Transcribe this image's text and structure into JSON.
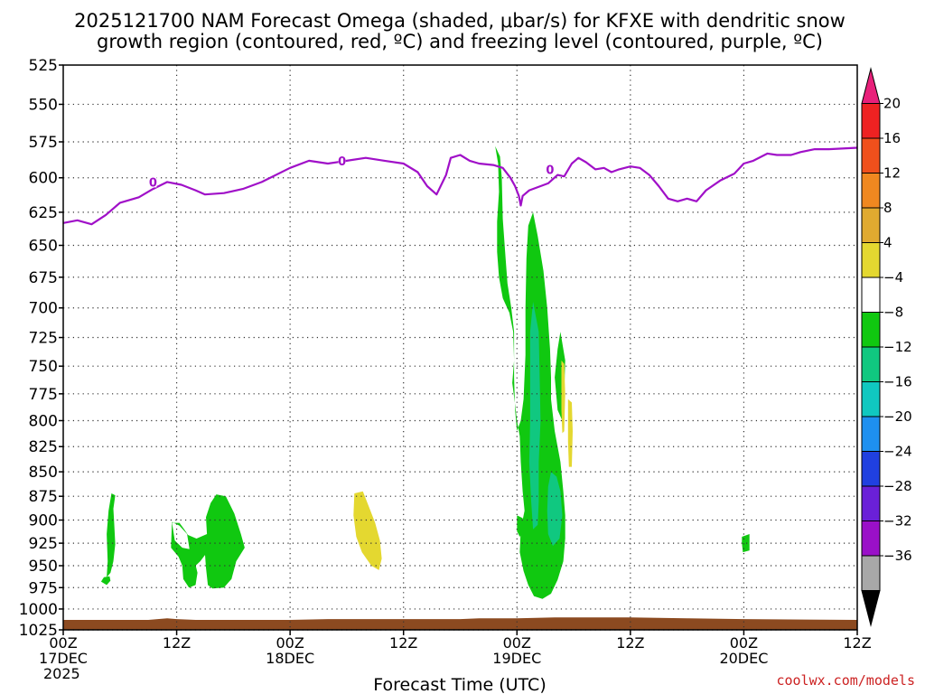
{
  "chart_data": {
    "type": "heatmap",
    "title": {
      "line1": "2025121700 NAM Forecast Omega (shaded, μbar/s) for KFXE with dendritic snow",
      "line2": "growth region (contoured, red, ºC) and freezing level (contoured, purple, ºC)"
    },
    "xlabel": "Forecast Time (UTC)",
    "credit": "coolwx.com/models",
    "x_unit": "hours since 2025-12-17 00Z",
    "xlim": [
      0,
      84
    ],
    "x_ticks": [
      {
        "t": 0,
        "l1": "00Z",
        "l2": "17DEC",
        "l3": "2025"
      },
      {
        "t": 12,
        "l1": "12Z",
        "l2": "",
        "l3": ""
      },
      {
        "t": 24,
        "l1": "00Z",
        "l2": "18DEC",
        "l3": ""
      },
      {
        "t": 36,
        "l1": "12Z",
        "l2": "",
        "l3": ""
      },
      {
        "t": 48,
        "l1": "00Z",
        "l2": "19DEC",
        "l3": ""
      },
      {
        "t": 60,
        "l1": "12Z",
        "l2": "",
        "l3": ""
      },
      {
        "t": 72,
        "l1": "00Z",
        "l2": "20DEC",
        "l3": ""
      },
      {
        "t": 84,
        "l1": "12Z",
        "l2": "",
        "l3": ""
      }
    ],
    "y_ticks": [
      525,
      550,
      575,
      600,
      625,
      650,
      675,
      700,
      725,
      750,
      775,
      800,
      825,
      850,
      875,
      900,
      925,
      950,
      975,
      1000,
      1025
    ],
    "ylim": [
      525,
      1025
    ],
    "y_scale": "log-pressure (hPa), inverted",
    "grid": true,
    "colorbar": {
      "labels": [
        20,
        16,
        12,
        8,
        4,
        -4,
        -8,
        -12,
        -16,
        -20,
        -24,
        -28,
        -32,
        -36
      ],
      "bins": [
        {
          "color": "#e8207a",
          "kind": "tri-top"
        },
        {
          "color": "#ee2222"
        },
        {
          "color": "#f0501c"
        },
        {
          "color": "#f08820"
        },
        {
          "color": "#e0aa30"
        },
        {
          "color": "#e4d830"
        },
        {
          "color": "#ffffff"
        },
        {
          "color": "#10c810"
        },
        {
          "color": "#10c880"
        },
        {
          "color": "#10c8c0"
        },
        {
          "color": "#1e90f0"
        },
        {
          "color": "#2040e0"
        },
        {
          "color": "#6a20d8"
        },
        {
          "color": "#9a10c8"
        },
        {
          "color": "#a8a8a8"
        },
        {
          "color": "#000000",
          "kind": "tri-bottom"
        }
      ]
    },
    "freezing_level": {
      "color": "#a010c8",
      "label": "0",
      "label_points": [
        {
          "t": 9.5,
          "p": 603
        },
        {
          "t": 29.5,
          "p": 588
        },
        {
          "t": 51.5,
          "p": 594
        }
      ],
      "points": [
        [
          0,
          633
        ],
        [
          1.5,
          631
        ],
        [
          3,
          634
        ],
        [
          4.5,
          627
        ],
        [
          6,
          618
        ],
        [
          8,
          614
        ],
        [
          9.5,
          608
        ],
        [
          11,
          603
        ],
        [
          12.5,
          605
        ],
        [
          14,
          609
        ],
        [
          15,
          612
        ],
        [
          17,
          611
        ],
        [
          19,
          608
        ],
        [
          21,
          603
        ],
        [
          24,
          593
        ],
        [
          26,
          588
        ],
        [
          28,
          590
        ],
        [
          30,
          588
        ],
        [
          32,
          586
        ],
        [
          34,
          588
        ],
        [
          36,
          590
        ],
        [
          37.5,
          596
        ],
        [
          38.5,
          606
        ],
        [
          39.5,
          612
        ],
        [
          40.5,
          598
        ],
        [
          41,
          586
        ],
        [
          42,
          584
        ],
        [
          43,
          588
        ],
        [
          44,
          590
        ],
        [
          45.5,
          591
        ],
        [
          46.5,
          593
        ],
        [
          47.3,
          600
        ],
        [
          47.8,
          606
        ],
        [
          48.2,
          613
        ],
        [
          48.4,
          620
        ],
        [
          48.6,
          613
        ],
        [
          49.3,
          609
        ],
        [
          50.5,
          606
        ],
        [
          51.3,
          604
        ],
        [
          52.3,
          598
        ],
        [
          53,
          599
        ],
        [
          53.8,
          590
        ],
        [
          54.5,
          586
        ],
        [
          55.3,
          589
        ],
        [
          56.3,
          594
        ],
        [
          57.2,
          593
        ],
        [
          58,
          596
        ],
        [
          58.8,
          594
        ],
        [
          60,
          592
        ],
        [
          61,
          593
        ],
        [
          62,
          598
        ],
        [
          63,
          606
        ],
        [
          64,
          615
        ],
        [
          65,
          617
        ],
        [
          66,
          615
        ],
        [
          67,
          617
        ],
        [
          68,
          609
        ],
        [
          69.5,
          602
        ],
        [
          71,
          597
        ],
        [
          72,
          590
        ],
        [
          73,
          588
        ],
        [
          74.5,
          583
        ],
        [
          75.5,
          584
        ],
        [
          77,
          584
        ],
        [
          78,
          582
        ],
        [
          79.5,
          580
        ],
        [
          81,
          580
        ],
        [
          84,
          579
        ]
      ]
    },
    "terrain": {
      "color": "#8c4a20",
      "points": [
        [
          0,
          1013
        ],
        [
          3,
          1013
        ],
        [
          9,
          1013
        ],
        [
          10,
          1012
        ],
        [
          11,
          1011
        ],
        [
          12,
          1012
        ],
        [
          14,
          1013
        ],
        [
          18,
          1013
        ],
        [
          24,
          1013
        ],
        [
          28,
          1012
        ],
        [
          36,
          1012
        ],
        [
          42,
          1012
        ],
        [
          44,
          1011
        ],
        [
          48,
          1011
        ],
        [
          52,
          1010
        ],
        [
          60,
          1010
        ],
        [
          66,
          1011
        ],
        [
          72,
          1012
        ],
        [
          84,
          1013
        ]
      ]
    },
    "shaded_regions": [
      {
        "value": -6,
        "color": "#10c810",
        "poly": [
          [
            4.6,
            963
          ],
          [
            5.0,
            958
          ],
          [
            5.3,
            945
          ],
          [
            5.5,
            926
          ],
          [
            5.4,
            905
          ],
          [
            5.3,
            888
          ],
          [
            5.5,
            874
          ],
          [
            5.1,
            872
          ],
          [
            4.8,
            890
          ],
          [
            4.6,
            915
          ],
          [
            4.7,
            945
          ],
          [
            4.6,
            963
          ]
        ]
      },
      {
        "value": -6,
        "color": "#10c810",
        "poly": [
          [
            4.0,
            968
          ],
          [
            4.6,
            972
          ],
          [
            5.0,
            967
          ],
          [
            4.9,
            962
          ],
          [
            4.3,
            963
          ],
          [
            4.0,
            968
          ]
        ]
      },
      {
        "value": -6,
        "color": "#10c810",
        "poly": [
          [
            11.5,
            902
          ],
          [
            12.3,
            906
          ],
          [
            13.1,
            915
          ],
          [
            13.3,
            928
          ],
          [
            13.5,
            942
          ],
          [
            14.0,
            950
          ],
          [
            14.5,
            945
          ],
          [
            15.0,
            938
          ],
          [
            15.1,
            952
          ],
          [
            15.3,
            972
          ],
          [
            15.8,
            976
          ],
          [
            17.0,
            975
          ],
          [
            17.8,
            965
          ],
          [
            18.3,
            945
          ],
          [
            19.2,
            930
          ],
          [
            18.8,
            915
          ],
          [
            18.1,
            893
          ],
          [
            17.2,
            875
          ],
          [
            16.2,
            873
          ],
          [
            15.6,
            882
          ],
          [
            15.1,
            897
          ],
          [
            15.2,
            915
          ],
          [
            14.1,
            920
          ],
          [
            13.2,
            916
          ],
          [
            12.8,
            910
          ],
          [
            12.3,
            903
          ],
          [
            11.5,
            903
          ],
          [
            11.4,
            930
          ],
          [
            12.2,
            940
          ],
          [
            12.6,
            950
          ],
          [
            12.7,
            965
          ],
          [
            13.3,
            975
          ],
          [
            14.0,
            972
          ],
          [
            14.2,
            958
          ],
          [
            13.9,
            945
          ],
          [
            13.6,
            932
          ],
          [
            12.6,
            930
          ],
          [
            11.8,
            922
          ],
          [
            11.5,
            902
          ]
        ]
      },
      {
        "value": 4,
        "color": "#e4d830",
        "poly": [
          [
            30.8,
            872
          ],
          [
            31.7,
            870
          ],
          [
            32.3,
            885
          ],
          [
            33.0,
            903
          ],
          [
            33.5,
            922
          ],
          [
            33.7,
            942
          ],
          [
            33.4,
            955
          ],
          [
            32.6,
            950
          ],
          [
            31.6,
            935
          ],
          [
            31.0,
            918
          ],
          [
            30.7,
            895
          ],
          [
            30.8,
            872
          ]
        ]
      },
      {
        "value": -6,
        "color": "#10c810",
        "poly": [
          [
            45.7,
            578
          ],
          [
            46.0,
            590
          ],
          [
            46.1,
            610
          ],
          [
            45.9,
            632
          ],
          [
            45.9,
            655
          ],
          [
            46.1,
            675
          ],
          [
            46.5,
            692
          ],
          [
            47.2,
            704
          ],
          [
            47.6,
            720
          ],
          [
            47.7,
            745
          ],
          [
            47.5,
            765
          ],
          [
            47.8,
            785
          ],
          [
            48.0,
            800
          ],
          [
            48.3,
            815
          ],
          [
            48.4,
            840
          ],
          [
            48.6,
            870
          ],
          [
            48.8,
            890
          ],
          [
            48.4,
            910
          ],
          [
            48.3,
            935
          ],
          [
            48.7,
            956
          ],
          [
            49.2,
            972
          ],
          [
            49.8,
            985
          ],
          [
            50.7,
            988
          ],
          [
            51.6,
            982
          ],
          [
            52.3,
            966
          ],
          [
            52.9,
            945
          ],
          [
            53.1,
            920
          ],
          [
            53.1,
            895
          ],
          [
            52.9,
            870
          ],
          [
            52.6,
            840
          ],
          [
            52.0,
            810
          ],
          [
            51.6,
            780
          ],
          [
            51.6,
            760
          ],
          [
            51.5,
            735
          ],
          [
            51.2,
            700
          ],
          [
            50.8,
            670
          ],
          [
            50.2,
            643
          ],
          [
            49.7,
            625
          ],
          [
            49.2,
            635
          ],
          [
            49.0,
            660
          ],
          [
            48.9,
            700
          ],
          [
            48.9,
            740
          ],
          [
            48.7,
            780
          ],
          [
            48.4,
            800
          ],
          [
            48.0,
            810
          ],
          [
            47.8,
            790
          ],
          [
            47.7,
            760
          ],
          [
            47.7,
            720
          ],
          [
            47.4,
            700
          ],
          [
            47.0,
            680
          ],
          [
            46.8,
            660
          ],
          [
            46.5,
            630
          ],
          [
            46.4,
            600
          ],
          [
            46.2,
            585
          ],
          [
            45.7,
            578
          ]
        ]
      },
      {
        "value": -6,
        "color": "#10c810",
        "poly": [
          [
            48.0,
            895
          ],
          [
            48.6,
            898
          ],
          [
            48.7,
            912
          ],
          [
            48.3,
            918
          ],
          [
            48.0,
            912
          ],
          [
            48.0,
            895
          ]
        ]
      },
      {
        "value": -6,
        "color": "#10c810",
        "poly": [
          [
            52.6,
            720
          ],
          [
            53.1,
            745
          ],
          [
            53.0,
            775
          ],
          [
            52.8,
            800
          ],
          [
            52.3,
            790
          ],
          [
            52.0,
            760
          ],
          [
            52.3,
            735
          ],
          [
            52.6,
            720
          ]
        ]
      },
      {
        "value": -10,
        "color": "#10c880",
        "poly": [
          [
            49.7,
            695
          ],
          [
            50.3,
            720
          ],
          [
            50.4,
            760
          ],
          [
            50.5,
            800
          ],
          [
            50.3,
            840
          ],
          [
            50.3,
            880
          ],
          [
            50.2,
            905
          ],
          [
            49.7,
            910
          ],
          [
            49.5,
            880
          ],
          [
            49.3,
            840
          ],
          [
            49.4,
            800
          ],
          [
            49.4,
            760
          ],
          [
            49.4,
            720
          ],
          [
            49.7,
            695
          ]
        ]
      },
      {
        "value": -10,
        "color": "#10c880",
        "poly": [
          [
            51.6,
            850
          ],
          [
            52.2,
            855
          ],
          [
            52.6,
            870
          ],
          [
            52.8,
            895
          ],
          [
            52.5,
            920
          ],
          [
            51.8,
            928
          ],
          [
            51.3,
            915
          ],
          [
            51.2,
            890
          ],
          [
            51.3,
            865
          ],
          [
            51.6,
            850
          ]
        ]
      },
      {
        "value": 4,
        "color": "#e4d830",
        "poly": [
          [
            52.7,
            745
          ],
          [
            53.0,
            748
          ],
          [
            53.1,
            775
          ],
          [
            53.0,
            810
          ],
          [
            52.8,
            812
          ],
          [
            52.7,
            790
          ],
          [
            52.7,
            765
          ],
          [
            52.7,
            745
          ]
        ]
      },
      {
        "value": 4,
        "color": "#e4d830",
        "poly": [
          [
            53.4,
            780
          ],
          [
            53.8,
            783
          ],
          [
            53.9,
            810
          ],
          [
            53.8,
            845
          ],
          [
            53.5,
            845
          ],
          [
            53.4,
            820
          ],
          [
            53.4,
            795
          ],
          [
            53.4,
            780
          ]
        ]
      },
      {
        "value": -6,
        "color": "#10c810",
        "poly": [
          [
            71.8,
            918
          ],
          [
            72.6,
            915
          ],
          [
            72.6,
            933
          ],
          [
            71.9,
            935
          ],
          [
            71.8,
            925
          ],
          [
            71.8,
            918
          ]
        ]
      }
    ]
  }
}
